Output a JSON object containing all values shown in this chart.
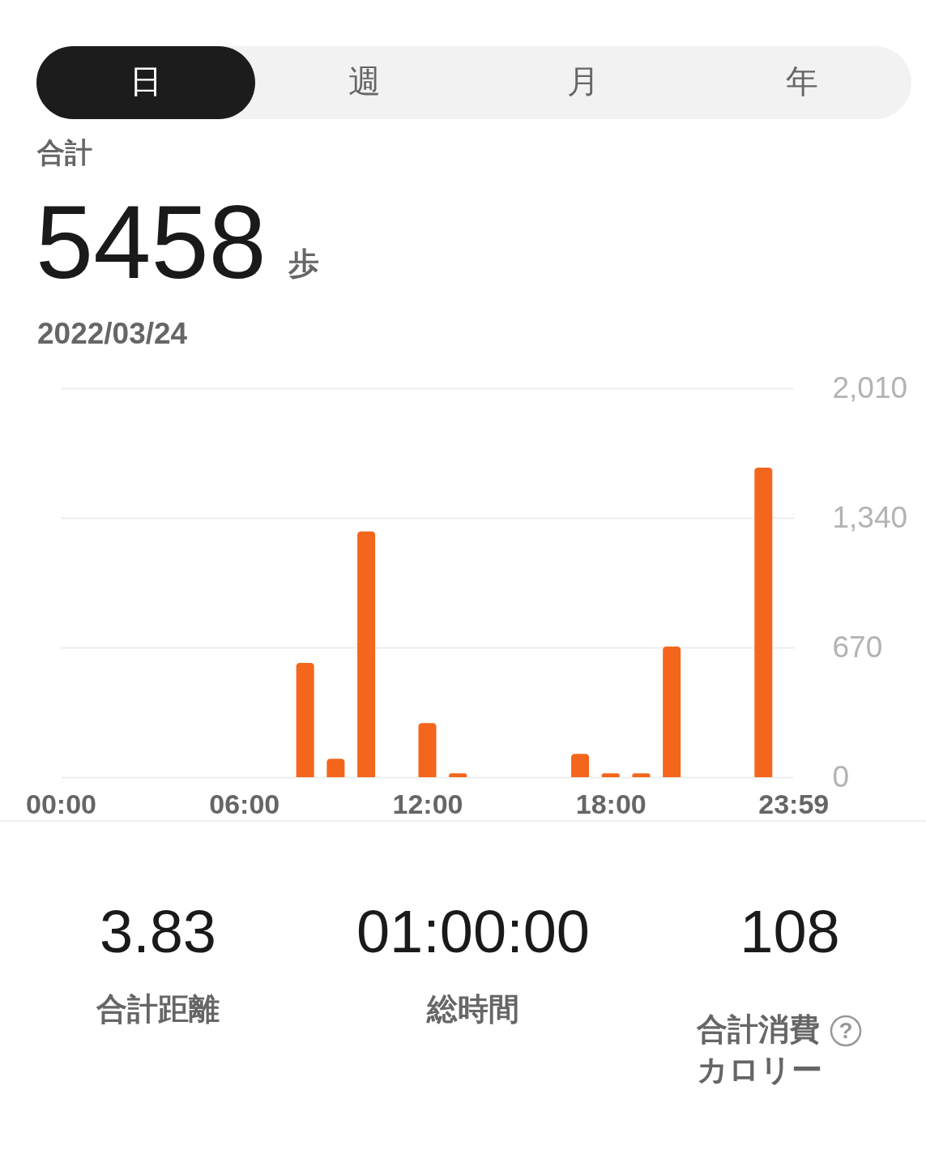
{
  "chart_data": {
    "type": "bar",
    "x": [
      8,
      9,
      10,
      12,
      13,
      17,
      18,
      19,
      20,
      23
    ],
    "series": [
      {
        "color": "#f4661b",
        "values": [
          590,
          95,
          1270,
          280,
          20,
          120,
          20,
          20,
          675,
          1600
        ]
      }
    ],
    "xlim": [
      0,
      24
    ],
    "xticks": [
      {
        "value": 0,
        "label": "00:00"
      },
      {
        "value": 6,
        "label": "06:00"
      },
      {
        "value": 12,
        "label": "12:00"
      },
      {
        "value": 18,
        "label": "18:00"
      },
      {
        "value": 23.98,
        "label": "23:59"
      }
    ],
    "ylim": [
      0,
      2010
    ],
    "yticks": [
      0,
      670,
      {
        "value": 1340,
        "label": "1,340"
      },
      {
        "value": 2010,
        "label": "2,010"
      }
    ],
    "grid": "y",
    "annotations": [
      "日",
      "週",
      "月",
      "年",
      "合計",
      "5458",
      "歩",
      "2022/03/24",
      "3.83",
      "合計距離",
      "01:00:00",
      "総時間",
      "108",
      "合計消費カロリー",
      "?"
    ]
  }
}
